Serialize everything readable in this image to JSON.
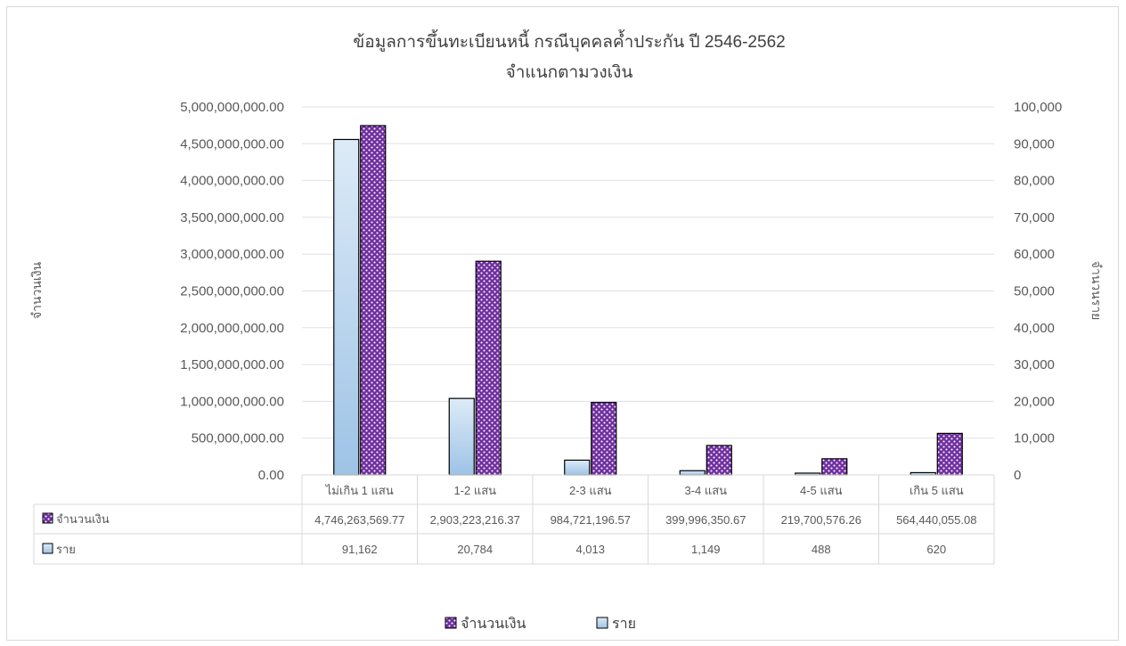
{
  "chart_data": {
    "type": "bar",
    "title": "ข้อมูลการขึ้นทะเบียนหนี้ กรณีบุคคลค้ำประกัน ปี 2546-2562",
    "subtitle": "จำแนกตามวงเงิน",
    "categories": [
      "ไม่เกิน 1 แสน",
      "1-2 แสน",
      "2-3 แสน",
      "3-4 แสน",
      "4-5 แสน",
      "เกิน 5 แสน"
    ],
    "series": [
      {
        "name": "จำนวนเงิน",
        "axis": "left",
        "pattern": "purple-dots",
        "values": [
          4746263569.77,
          2903223216.37,
          984721196.57,
          399996350.67,
          219700576.26,
          564440055.08
        ],
        "display": [
          "4,746,263,569.77",
          "2,903,223,216.37",
          "984,721,196.57",
          "399,996,350.67",
          "219,700,576.26",
          "564,440,055.08"
        ]
      },
      {
        "name": "ราย",
        "axis": "right",
        "pattern": "light-blue-gradient",
        "values": [
          91162,
          20784,
          4013,
          1149,
          488,
          620
        ],
        "display": [
          "91,162",
          "20,784",
          "4,013",
          "1,149",
          "488",
          "620"
        ]
      }
    ],
    "ylabel_left": "จำนวนเงิน",
    "ylabel_right": "จำนวนราย",
    "ylim_left": [
      0,
      5000000000
    ],
    "ylim_right": [
      0,
      100000
    ],
    "yticks_left": [
      "0.00",
      "500,000,000.00",
      "1,000,000,000.00",
      "1,500,000,000.00",
      "2,000,000,000.00",
      "2,500,000,000.00",
      "3,000,000,000.00",
      "3,500,000,000.00",
      "4,000,000,000.00",
      "4,500,000,000.00",
      "5,000,000,000.00"
    ],
    "yticks_right": [
      "0",
      "10,000",
      "20,000",
      "30,000",
      "40,000",
      "50,000",
      "60,000",
      "70,000",
      "80,000",
      "90,000",
      "100,000"
    ],
    "grid": true,
    "data_table": true,
    "legend_position": "bottom"
  },
  "colors": {
    "purple_fill": "#7030a0",
    "dot": "#ffffff",
    "blue_light": "#ddebf7",
    "blue_mid": "#9dc3e6",
    "bar_stroke": "#000000",
    "grid": "#e0e0e0"
  }
}
